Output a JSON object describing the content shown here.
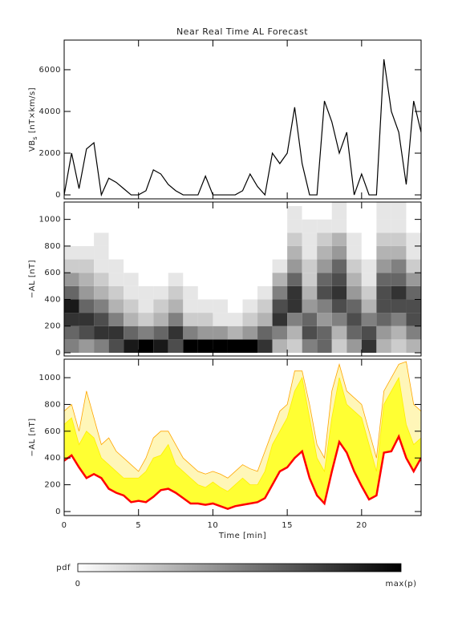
{
  "chart_data": [
    {
      "type": "line",
      "title": "Near Real Time AL Forecast",
      "ylabel": "VB",
      "ylabel_subscript": "s",
      "ylabel_unit": " [nT×km/s]",
      "x": [
        0,
        0.5,
        1,
        1.5,
        2,
        2.5,
        3,
        3.5,
        4,
        4.5,
        5,
        5.5,
        6,
        6.5,
        7,
        7.5,
        8,
        8.5,
        9,
        9.5,
        10,
        10.5,
        11,
        11.5,
        12,
        12.5,
        13,
        13.5,
        14,
        14.5,
        15,
        15.5,
        16,
        16.5,
        17,
        17.5,
        18,
        18.5,
        19,
        19.5,
        20,
        20.5,
        21,
        21.5,
        22,
        22.5,
        23,
        23.5,
        24
      ],
      "series": [
        {
          "color": "#000000",
          "values": [
            0,
            2000,
            300,
            2200,
            2500,
            0,
            800,
            600,
            300,
            0,
            0,
            200,
            1200,
            1000,
            500,
            200,
            0,
            0,
            0,
            900,
            0,
            0,
            0,
            0,
            200,
            1000,
            400,
            0,
            2000,
            1500,
            2000,
            4200,
            1500,
            0,
            0,
            4500,
            3500,
            2000,
            3000,
            0,
            1000,
            0,
            0,
            6500,
            4000,
            3000,
            500,
            4500,
            3000
          ]
        }
      ],
      "xlim": [
        0,
        24
      ],
      "xticks": [
        0,
        5,
        10,
        15,
        20
      ],
      "ylim": [
        -190,
        7420
      ],
      "yticks": [
        0,
        2000,
        4000,
        6000
      ]
    },
    {
      "type": "heatmap",
      "ylabel": "−AL [nT]",
      "x_bins": [
        0,
        1,
        2,
        3,
        4,
        5,
        6,
        7,
        8,
        9,
        10,
        11,
        12,
        13,
        14,
        15,
        16,
        17,
        18,
        19,
        20,
        21,
        22,
        23,
        24
      ],
      "y_bins": [
        0,
        100,
        200,
        300,
        400,
        500,
        600,
        700,
        800,
        900,
        1000,
        1100,
        1200
      ],
      "values": [
        [
          0.5,
          0.6,
          0.8,
          0.9,
          0.6,
          0.4,
          0.2,
          0.1,
          0,
          0,
          0,
          0
        ],
        [
          0.4,
          0.7,
          0.8,
          0.6,
          0.4,
          0.3,
          0.2,
          0.1,
          0,
          0,
          0,
          0
        ],
        [
          0.5,
          0.8,
          0.7,
          0.5,
          0.3,
          0.2,
          0.1,
          0.1,
          0.1,
          0,
          0,
          0
        ],
        [
          0.7,
          0.8,
          0.5,
          0.3,
          0.2,
          0.1,
          0.1,
          0,
          0,
          0,
          0,
          0
        ],
        [
          0.9,
          0.6,
          0.3,
          0.2,
          0.1,
          0.1,
          0,
          0,
          0,
          0,
          0,
          0
        ],
        [
          1,
          0.5,
          0.2,
          0.1,
          0.1,
          0,
          0,
          0,
          0,
          0,
          0,
          0
        ],
        [
          0.9,
          0.6,
          0.3,
          0.2,
          0.1,
          0,
          0,
          0,
          0,
          0,
          0,
          0
        ],
        [
          0.7,
          0.8,
          0.5,
          0.3,
          0.2,
          0.1,
          0,
          0,
          0,
          0,
          0,
          0
        ],
        [
          1,
          0.5,
          0.2,
          0.1,
          0.1,
          0,
          0,
          0,
          0,
          0,
          0,
          0
        ],
        [
          1,
          0.4,
          0.2,
          0.1,
          0,
          0,
          0,
          0,
          0,
          0,
          0,
          0
        ],
        [
          1,
          0.4,
          0.1,
          0.1,
          0,
          0,
          0,
          0,
          0,
          0,
          0,
          0
        ],
        [
          1,
          0.3,
          0.1,
          0,
          0,
          0,
          0,
          0,
          0,
          0,
          0,
          0
        ],
        [
          1,
          0.4,
          0.2,
          0.1,
          0,
          0,
          0,
          0,
          0,
          0,
          0,
          0
        ],
        [
          0.8,
          0.6,
          0.3,
          0.2,
          0.1,
          0,
          0,
          0,
          0,
          0,
          0,
          0
        ],
        [
          0.3,
          0.5,
          0.8,
          0.7,
          0.5,
          0.3,
          0.1,
          0,
          0,
          0,
          0,
          0
        ],
        [
          0.2,
          0.3,
          0.5,
          0.8,
          0.8,
          0.6,
          0.4,
          0.3,
          0.2,
          0.1,
          0.1,
          0
        ],
        [
          0.5,
          0.7,
          0.6,
          0.4,
          0.3,
          0.2,
          0.2,
          0.1,
          0.1,
          0.1,
          0,
          0
        ],
        [
          0.6,
          0.6,
          0.4,
          0.5,
          0.7,
          0.6,
          0.4,
          0.3,
          0.2,
          0.1,
          0,
          0
        ],
        [
          0.2,
          0.3,
          0.5,
          0.7,
          0.8,
          0.7,
          0.6,
          0.4,
          0.3,
          0.1,
          0.1,
          0.1
        ],
        [
          0.4,
          0.6,
          0.7,
          0.6,
          0.4,
          0.3,
          0.2,
          0.1,
          0.1,
          0,
          0,
          0
        ],
        [
          0.8,
          0.7,
          0.5,
          0.3,
          0.2,
          0.1,
          0.1,
          0,
          0,
          0,
          0,
          0
        ],
        [
          0.3,
          0.4,
          0.6,
          0.7,
          0.7,
          0.6,
          0.4,
          0.3,
          0.2,
          0.1,
          0.1,
          0.1
        ],
        [
          0.2,
          0.3,
          0.5,
          0.7,
          0.8,
          0.6,
          0.5,
          0.3,
          0.2,
          0.1,
          0.1,
          0.1
        ],
        [
          0.3,
          0.5,
          0.7,
          0.7,
          0.6,
          0.4,
          0.2,
          0.1,
          0.1,
          0,
          0,
          0
        ]
      ],
      "colorbar": {
        "label": "pdf",
        "min_label": "0",
        "max_label": "max(p)"
      },
      "xlim": [
        0,
        24
      ],
      "xticks": [
        0,
        5,
        10,
        15,
        20
      ],
      "ylim": [
        -24,
        1130
      ],
      "yticks": [
        0,
        200,
        400,
        600,
        800,
        1000
      ]
    },
    {
      "type": "area",
      "ylabel": "−AL [nT]",
      "xlabel": "Time [min]",
      "x": [
        0,
        0.5,
        1,
        1.5,
        2,
        2.5,
        3,
        3.5,
        4,
        4.5,
        5,
        5.5,
        6,
        6.5,
        7,
        7.5,
        8,
        8.5,
        9,
        9.5,
        10,
        10.5,
        11,
        11.5,
        12,
        12.5,
        13,
        13.5,
        14,
        14.5,
        15,
        15.5,
        16,
        16.5,
        17,
        17.5,
        18,
        18.5,
        19,
        19.5,
        20,
        20.5,
        21,
        21.5,
        22,
        22.5,
        23,
        23.5,
        24
      ],
      "series": [
        {
          "color": "#ffa500",
          "fill": "#fff6b8",
          "values": [
            750,
            800,
            600,
            900,
            700,
            500,
            550,
            450,
            400,
            350,
            300,
            400,
            550,
            600,
            600,
            500,
            400,
            350,
            300,
            280,
            300,
            280,
            250,
            300,
            350,
            320,
            300,
            450,
            600,
            750,
            800,
            1050,
            1050,
            800,
            500,
            400,
            900,
            1100,
            900,
            850,
            800,
            600,
            400,
            900,
            1000,
            1100,
            1120,
            800,
            750
          ]
        },
        {
          "color": "#ffee00",
          "fill": "#ffff33",
          "values": [
            650,
            700,
            500,
            600,
            550,
            400,
            350,
            300,
            250,
            250,
            250,
            300,
            400,
            420,
            500,
            350,
            300,
            250,
            200,
            180,
            220,
            180,
            150,
            200,
            250,
            200,
            200,
            300,
            500,
            600,
            700,
            900,
            1000,
            700,
            400,
            300,
            700,
            1000,
            800,
            750,
            700,
            500,
            300,
            800,
            900,
            1000,
            650,
            500,
            550
          ]
        },
        {
          "color": "#ff0000",
          "fill": "#ffffff",
          "values": [
            380,
            420,
            330,
            250,
            280,
            250,
            170,
            140,
            120,
            70,
            80,
            70,
            110,
            160,
            170,
            140,
            100,
            60,
            60,
            50,
            60,
            40,
            20,
            40,
            50,
            60,
            70,
            100,
            200,
            300,
            330,
            400,
            450,
            250,
            120,
            60,
            300,
            520,
            440,
            300,
            190,
            90,
            120,
            440,
            450,
            560,
            400,
            300,
            400
          ]
        }
      ],
      "xlim": [
        0,
        24
      ],
      "xticks": [
        0,
        5,
        10,
        15,
        20
      ],
      "ylim": [
        -30,
        1138
      ],
      "yticks": [
        0,
        200,
        400,
        600,
        800,
        1000
      ]
    }
  ]
}
